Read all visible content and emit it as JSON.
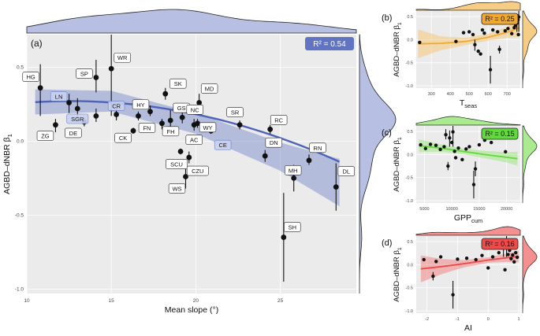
{
  "colors": {
    "panel_bg": "#ebebeb",
    "main": "#6f82c7",
    "main_line": "#4e63b8",
    "main_badge": "#6174c4",
    "b": "#f0a830",
    "b_band": "#f5c46e",
    "c": "#62d93a",
    "c_band": "#9be87c",
    "d": "#ef4a4a",
    "d_band": "#f27d7d",
    "point": "#111111",
    "label_border": "#222222"
  },
  "chart_data": [
    {
      "id": "a",
      "panel_label": "(a)",
      "type": "scatter",
      "xlabel": "Mean slope (°)",
      "ylabel_base": "AGBD–dNBR β",
      "ylabel_sub": "1",
      "xlim": [
        10,
        29.5
      ],
      "ylim": [
        -1.03,
        0.72
      ],
      "xticks": [
        10,
        15,
        20,
        25
      ],
      "yticks": [
        0.5,
        0,
        -0.5,
        -1
      ],
      "ytick_labels": [
        "0.5",
        "0.0",
        "-0.5",
        "-1.0"
      ],
      "r2_label": "R² = 0.54",
      "fit": {
        "type": "quadratic",
        "a": -0.00162,
        "b": 0.0408,
        "c": 0.0137
      },
      "band": {
        "x": [
          10.5,
          15,
          20,
          25,
          28.5
        ],
        "lower": [
          0.18,
          0.2,
          0.05,
          -0.2,
          -0.44
        ],
        "upper": [
          0.35,
          0.34,
          0.19,
          -0.01,
          -0.12
        ]
      },
      "points": [
        {
          "name": "HG",
          "x": 10.8,
          "y": 0.36,
          "lo": 0.17,
          "hi": 0.52
        },
        {
          "name": "ZG",
          "x": 11.7,
          "y": 0.11,
          "lo": 0.06,
          "hi": 0.15
        },
        {
          "name": "LN",
          "x": 12.5,
          "y": 0.26,
          "lo": 0.19,
          "hi": 0.32
        },
        {
          "name": "SGR",
          "x": 13.0,
          "y": 0.22,
          "lo": 0.16,
          "hi": 0.29
        },
        {
          "name": "DE",
          "x": 13.4,
          "y": 0.13,
          "lo": 0.1,
          "hi": 0.16
        },
        {
          "name": "SP",
          "x": 14.1,
          "y": 0.43,
          "lo": 0.33,
          "hi": 0.55
        },
        {
          "name": "",
          "x": 14.1,
          "y": 0.17,
          "lo": 0.13,
          "hi": 0.22
        },
        {
          "name": "WR",
          "x": 15.0,
          "y": 0.49,
          "lo": 0.17,
          "hi": 0.95
        },
        {
          "name": "CR",
          "x": 15.3,
          "y": 0.18,
          "lo": 0.14,
          "hi": 0.22
        },
        {
          "name": "CK",
          "x": 16.3,
          "y": 0.07,
          "lo": 0.05,
          "hi": 0.09
        },
        {
          "name": "FN",
          "x": 16.6,
          "y": 0.17,
          "lo": 0.14,
          "hi": 0.2
        },
        {
          "name": "HY",
          "x": 17.3,
          "y": 0.2,
          "lo": 0.17,
          "hi": 0.24
        },
        {
          "name": "SK",
          "x": 18.2,
          "y": 0.32,
          "lo": 0.28,
          "hi": 0.36
        },
        {
          "name": "GS",
          "x": 18.5,
          "y": 0.14,
          "lo": 0.07,
          "hi": 0.21
        },
        {
          "name": "FH",
          "x": 18.0,
          "y": 0.12,
          "lo": 0.08,
          "hi": 0.15
        },
        {
          "name": "NC",
          "x": 19.2,
          "y": 0.16,
          "lo": 0.12,
          "hi": 0.2
        },
        {
          "name": "AC",
          "x": 19.9,
          "y": 0.11,
          "lo": 0.07,
          "hi": 0.15
        },
        {
          "name": "SCU",
          "x": 19.1,
          "y": -0.07,
          "lo": -0.09,
          "hi": -0.05
        },
        {
          "name": "CZU",
          "x": 19.6,
          "y": -0.11,
          "lo": -0.15,
          "hi": -0.07
        },
        {
          "name": "WS",
          "x": 19.4,
          "y": -0.24,
          "lo": -0.32,
          "hi": -0.16
        },
        {
          "name": "MD",
          "x": 20.2,
          "y": 0.26,
          "lo": 0.21,
          "hi": 0.32
        },
        {
          "name": "WY",
          "x": 20.1,
          "y": 0.12,
          "lo": 0.09,
          "hi": 0.15
        },
        {
          "name": "CE",
          "x": 20.9,
          "y": 0.07,
          "lo": 0.05,
          "hi": 0.09
        },
        {
          "name": "SR",
          "x": 22.6,
          "y": 0.11,
          "lo": 0.08,
          "hi": 0.14
        },
        {
          "name": "RC",
          "x": 24.4,
          "y": 0.08,
          "lo": 0.05,
          "hi": 0.11
        },
        {
          "name": "DN",
          "x": 24.1,
          "y": -0.1,
          "lo": -0.14,
          "hi": -0.06
        },
        {
          "name": "SH",
          "x": 25.2,
          "y": -0.65,
          "lo": -0.95,
          "hi": -0.35
        },
        {
          "name": "MH",
          "x": 25.8,
          "y": -0.25,
          "lo": -0.34,
          "hi": -0.16
        },
        {
          "name": "RN",
          "x": 26.7,
          "y": -0.13,
          "lo": -0.16,
          "hi": -0.09
        },
        {
          "name": "DL",
          "x": 28.3,
          "y": -0.31,
          "lo": -0.47,
          "hi": -0.15
        }
      ]
    },
    {
      "id": "b",
      "panel_label": "(b)",
      "type": "scatter",
      "xlabel_base": "T",
      "xlabel_sub": "seas",
      "ylabel_base": "AGBD–dNBR β",
      "ylabel_sub": "1",
      "xlim": [
        220,
        770
      ],
      "ylim": [
        -1.05,
        0.62
      ],
      "xticks": [
        300,
        400,
        500,
        600,
        700
      ],
      "yticks": [
        0.5,
        0,
        -0.5,
        -1
      ],
      "ytick_labels": [
        "0.5",
        "0.0",
        "-0.5",
        "-1.0"
      ],
      "r2_label": "R² = 0.25",
      "fit_x": [
        230,
        350,
        480,
        600,
        700,
        765
      ],
      "fit_y": [
        -0.09,
        -0.08,
        -0.04,
        0.05,
        0.16,
        0.26
      ],
      "band_lower": [
        -0.4,
        -0.23,
        -0.12,
        -0.02,
        0.04,
        0.06
      ],
      "band_upper": [
        0.22,
        0.07,
        0.04,
        0.12,
        0.28,
        0.46
      ],
      "points": [
        {
          "x": 238,
          "y": -0.06,
          "lo": -0.06,
          "hi": -0.06
        },
        {
          "x": 430,
          "y": -0.04,
          "lo": -0.04,
          "hi": -0.04
        },
        {
          "x": 470,
          "y": 0.15,
          "lo": 0.15,
          "hi": 0.15
        },
        {
          "x": 500,
          "y": 0.17,
          "lo": 0.17,
          "hi": 0.17
        },
        {
          "x": 520,
          "y": 0.11,
          "lo": 0.11,
          "hi": 0.11
        },
        {
          "x": 530,
          "y": -0.11,
          "lo": -0.24,
          "hi": 0.0
        },
        {
          "x": 548,
          "y": -0.25,
          "lo": -0.25,
          "hi": -0.25
        },
        {
          "x": 560,
          "y": -0.31,
          "lo": -0.31,
          "hi": -0.31
        },
        {
          "x": 570,
          "y": 0.21,
          "lo": 0.21,
          "hi": 0.21
        },
        {
          "x": 580,
          "y": 0.14,
          "lo": 0.14,
          "hi": 0.14
        },
        {
          "x": 612,
          "y": -0.65,
          "lo": -0.95,
          "hi": -0.35
        },
        {
          "x": 625,
          "y": 0.21,
          "lo": 0.21,
          "hi": 0.21
        },
        {
          "x": 650,
          "y": 0.17,
          "lo": 0.17,
          "hi": 0.17
        },
        {
          "x": 660,
          "y": -0.21,
          "lo": -0.3,
          "hi": -0.13
        },
        {
          "x": 690,
          "y": 0.19,
          "lo": 0.19,
          "hi": 0.19
        },
        {
          "x": 705,
          "y": 0.24,
          "lo": 0.24,
          "hi": 0.24
        },
        {
          "x": 725,
          "y": 0.13,
          "lo": 0.13,
          "hi": 0.13
        },
        {
          "x": 738,
          "y": 0.26,
          "lo": 0.26,
          "hi": 0.26
        },
        {
          "x": 745,
          "y": 0.31,
          "lo": 0.31,
          "hi": 0.31
        },
        {
          "x": 752,
          "y": 0.36,
          "lo": 0.17,
          "hi": 0.52
        },
        {
          "x": 758,
          "y": 0.43,
          "lo": 0.33,
          "hi": 0.55
        },
        {
          "x": 762,
          "y": 0.49,
          "lo": 0.17,
          "hi": 0.95
        },
        {
          "x": 760,
          "y": 0.11,
          "lo": 0.11,
          "hi": 0.11
        }
      ]
    },
    {
      "id": "c",
      "panel_label": "(c)",
      "type": "scatter",
      "xlabel_base": "GPP",
      "xlabel_sub": "cum",
      "ylabel_base": "AGBD–dNBR β",
      "ylabel_sub": "1",
      "xlim": [
        3500,
        22500
      ],
      "ylim": [
        -1.05,
        0.62
      ],
      "xticks": [
        5000,
        10000,
        15000,
        20000
      ],
      "yticks": [
        0.5,
        0,
        -0.5,
        -1
      ],
      "ytick_labels": [
        "0.5",
        "0.0",
        "-0.5",
        "-1.0"
      ],
      "r2_label": "R² = 0.15",
      "fit_x": [
        4000,
        8000,
        12000,
        16000,
        20000,
        22000
      ],
      "fit_y": [
        0.19,
        0.14,
        0.07,
        0.0,
        -0.06,
        -0.09
      ],
      "band_lower": [
        0.05,
        0.06,
        0.01,
        -0.08,
        -0.17,
        -0.24
      ],
      "band_upper": [
        0.33,
        0.22,
        0.13,
        0.08,
        0.05,
        0.06
      ],
      "points": [
        {
          "x": 4300,
          "y": 0.21,
          "lo": 0.21,
          "hi": 0.21
        },
        {
          "x": 5200,
          "y": 0.13,
          "lo": 0.13,
          "hi": 0.13
        },
        {
          "x": 6100,
          "y": 0.22,
          "lo": 0.22,
          "hi": 0.22
        },
        {
          "x": 7100,
          "y": 0.2,
          "lo": 0.2,
          "hi": 0.2
        },
        {
          "x": 7900,
          "y": 0.11,
          "lo": 0.11,
          "hi": 0.11
        },
        {
          "x": 8600,
          "y": 0.17,
          "lo": 0.17,
          "hi": 0.17
        },
        {
          "x": 8900,
          "y": 0.43,
          "lo": 0.33,
          "hi": 0.55
        },
        {
          "x": 9300,
          "y": -0.25,
          "lo": -0.34,
          "hi": -0.16
        },
        {
          "x": 9600,
          "y": 0.36,
          "lo": 0.17,
          "hi": 0.52
        },
        {
          "x": 10000,
          "y": 0.26,
          "lo": 0.26,
          "hi": 0.26
        },
        {
          "x": 10200,
          "y": 0.49,
          "lo": 0.17,
          "hi": 0.95
        },
        {
          "x": 10500,
          "y": 0.07,
          "lo": 0.07,
          "hi": 0.07
        },
        {
          "x": 10700,
          "y": -0.07,
          "lo": -0.07,
          "hi": -0.07
        },
        {
          "x": 11200,
          "y": 0.14,
          "lo": 0.14,
          "hi": 0.14
        },
        {
          "x": 11900,
          "y": -0.11,
          "lo": -0.11,
          "hi": -0.11
        },
        {
          "x": 12600,
          "y": 0.12,
          "lo": 0.12,
          "hi": 0.12
        },
        {
          "x": 13200,
          "y": 0.17,
          "lo": 0.17,
          "hi": 0.17
        },
        {
          "x": 14000,
          "y": -0.65,
          "lo": -0.95,
          "hi": -0.35
        },
        {
          "x": 14300,
          "y": -0.31,
          "lo": -0.47,
          "hi": -0.15
        },
        {
          "x": 15000,
          "y": 0.21,
          "lo": 0.21,
          "hi": 0.21
        },
        {
          "x": 16000,
          "y": 0.31,
          "lo": 0.31,
          "hi": 0.31
        },
        {
          "x": 17200,
          "y": 0.26,
          "lo": 0.26,
          "hi": 0.26
        },
        {
          "x": 19800,
          "y": 0.06,
          "lo": 0.06,
          "hi": 0.06
        }
      ]
    },
    {
      "id": "d",
      "panel_label": "(d)",
      "type": "scatter",
      "xlabel_base": "AI",
      "xlabel_sub": "",
      "ylabel_base": "AGBD–dNBR β",
      "ylabel_sub": "1",
      "xlim": [
        -2.35,
        1.05
      ],
      "ylim": [
        -1.05,
        0.62
      ],
      "xticks": [
        -2,
        -1,
        0,
        1
      ],
      "yticks": [
        0.5,
        0,
        -0.5,
        -1
      ],
      "ytick_labels": [
        "0.5",
        "0.0",
        "-0.5",
        "-1.0"
      ],
      "r2_label": "R² = 0.16",
      "fit_x": [
        -2.2,
        -1.5,
        -0.8,
        0,
        0.6,
        1.0
      ],
      "fit_y": [
        -0.09,
        -0.04,
        0.02,
        0.1,
        0.15,
        0.18
      ],
      "band_lower": [
        -0.38,
        -0.2,
        -0.06,
        0.04,
        0.06,
        0.05
      ],
      "band_upper": [
        0.2,
        0.12,
        0.1,
        0.16,
        0.24,
        0.31
      ],
      "points": [
        {
          "x": -2.1,
          "y": 0.11,
          "lo": 0.11,
          "hi": 0.11
        },
        {
          "x": -1.8,
          "y": -0.25,
          "lo": -0.34,
          "hi": -0.16
        },
        {
          "x": -1.7,
          "y": 0.07,
          "lo": 0.07,
          "hi": 0.07
        },
        {
          "x": -1.55,
          "y": 0.17,
          "lo": 0.17,
          "hi": 0.17
        },
        {
          "x": -1.15,
          "y": -0.65,
          "lo": -0.95,
          "hi": -0.35
        },
        {
          "x": -1.0,
          "y": 0.12,
          "lo": 0.12,
          "hi": 0.12
        },
        {
          "x": -0.7,
          "y": 0.14,
          "lo": 0.14,
          "hi": 0.14
        },
        {
          "x": -0.4,
          "y": 0.11,
          "lo": 0.11,
          "hi": 0.11
        },
        {
          "x": -0.2,
          "y": 0.2,
          "lo": 0.2,
          "hi": 0.2
        },
        {
          "x": 0.0,
          "y": -0.07,
          "lo": -0.07,
          "hi": -0.07
        },
        {
          "x": 0.15,
          "y": 0.17,
          "lo": 0.17,
          "hi": 0.17
        },
        {
          "x": 0.35,
          "y": 0.26,
          "lo": 0.26,
          "hi": 0.26
        },
        {
          "x": 0.4,
          "y": 0.43,
          "lo": 0.33,
          "hi": 0.55
        },
        {
          "x": 0.5,
          "y": 0.36,
          "lo": 0.17,
          "hi": 0.52
        },
        {
          "x": 0.55,
          "y": -0.11,
          "lo": -0.11,
          "hi": -0.11
        },
        {
          "x": 0.6,
          "y": 0.49,
          "lo": 0.17,
          "hi": 0.95
        },
        {
          "x": 0.65,
          "y": 0.22,
          "lo": 0.22,
          "hi": 0.22
        },
        {
          "x": 0.7,
          "y": 0.31,
          "lo": 0.31,
          "hi": 0.31
        },
        {
          "x": 0.75,
          "y": 0.13,
          "lo": 0.13,
          "hi": 0.13
        },
        {
          "x": 0.8,
          "y": 0.21,
          "lo": 0.21,
          "hi": 0.21
        },
        {
          "x": 0.85,
          "y": 0.06,
          "lo": 0.06,
          "hi": 0.06
        },
        {
          "x": 0.9,
          "y": 0.26,
          "lo": 0.26,
          "hi": 0.26
        },
        {
          "x": 0.95,
          "y": 0.16,
          "lo": 0.16,
          "hi": 0.16
        }
      ]
    }
  ]
}
